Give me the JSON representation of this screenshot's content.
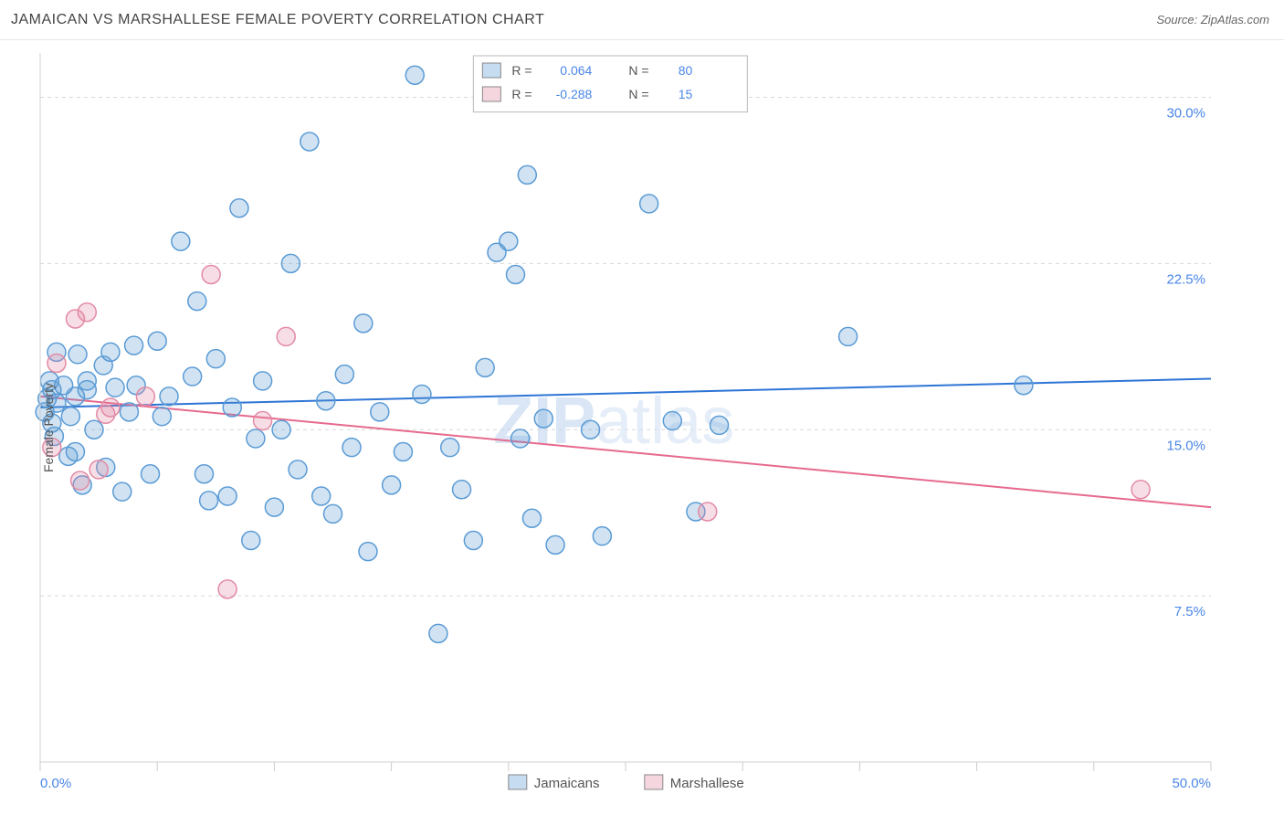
{
  "header": {
    "title": "JAMAICAN VS MARSHALLESE FEMALE POVERTY CORRELATION CHART",
    "source_label": "Source: ZipAtlas.com"
  },
  "chart": {
    "type": "scatter",
    "y_axis_label": "Female Poverty",
    "watermark": "ZIPatlas",
    "background_color": "#ffffff",
    "grid_color": "#d9d9d9",
    "axis_color": "#d0d0d0",
    "tick_color": "#cccccc",
    "label_color": "#4a86e8",
    "title_fontsize": 16,
    "label_fontsize": 14,
    "tick_fontsize": 15,
    "xlim": [
      0,
      50
    ],
    "ylim": [
      0,
      32
    ],
    "x_tick_positions": [
      0,
      5,
      10,
      15,
      20,
      25,
      30,
      35,
      40,
      45,
      50
    ],
    "x_tick_labels": {
      "0": "0.0%",
      "50": "50.0%"
    },
    "y_ticks": [
      {
        "value": 7.5,
        "label": "7.5%"
      },
      {
        "value": 15.0,
        "label": "15.0%"
      },
      {
        "value": 22.5,
        "label": "22.5%"
      },
      {
        "value": 30.0,
        "label": "30.0%"
      }
    ],
    "marker_radius": 10,
    "marker_stroke_width": 1.5,
    "marker_fill_opacity": 0.28,
    "line_width": 2,
    "series": [
      {
        "id": "jamaicans",
        "name": "Jamaicans",
        "color": "#5b9bd5",
        "line_color": "#2e75d6",
        "R": "0.064",
        "N": "80",
        "trend": {
          "x1": 0,
          "y1": 16.0,
          "x2": 50,
          "y2": 17.3
        },
        "points": [
          [
            0.2,
            15.8
          ],
          [
            0.3,
            16.4
          ],
          [
            0.4,
            17.2
          ],
          [
            0.5,
            15.3
          ],
          [
            0.5,
            16.8
          ],
          [
            0.6,
            14.7
          ],
          [
            0.7,
            16.2
          ],
          [
            0.7,
            18.5
          ],
          [
            1.0,
            17.0
          ],
          [
            1.2,
            13.8
          ],
          [
            1.3,
            15.6
          ],
          [
            1.5,
            16.5
          ],
          [
            1.6,
            18.4
          ],
          [
            1.8,
            12.5
          ],
          [
            2.0,
            16.8
          ],
          [
            2.0,
            17.2
          ],
          [
            2.3,
            15.0
          ],
          [
            2.7,
            17.9
          ],
          [
            2.8,
            13.3
          ],
          [
            3.0,
            18.5
          ],
          [
            3.2,
            16.9
          ],
          [
            3.5,
            12.2
          ],
          [
            4.0,
            18.8
          ],
          [
            4.1,
            17.0
          ],
          [
            4.7,
            13.0
          ],
          [
            5.0,
            19.0
          ],
          [
            5.2,
            15.6
          ],
          [
            5.5,
            16.5
          ],
          [
            6.0,
            23.5
          ],
          [
            6.5,
            17.4
          ],
          [
            6.7,
            20.8
          ],
          [
            7.0,
            13.0
          ],
          [
            7.2,
            11.8
          ],
          [
            7.5,
            18.2
          ],
          [
            8.0,
            12.0
          ],
          [
            8.2,
            16.0
          ],
          [
            8.5,
            25.0
          ],
          [
            9.0,
            10.0
          ],
          [
            9.2,
            14.6
          ],
          [
            9.5,
            17.2
          ],
          [
            10.0,
            11.5
          ],
          [
            10.3,
            15.0
          ],
          [
            10.7,
            22.5
          ],
          [
            11.0,
            13.2
          ],
          [
            11.5,
            28.0
          ],
          [
            12.0,
            12.0
          ],
          [
            12.2,
            16.3
          ],
          [
            12.5,
            11.2
          ],
          [
            13.0,
            17.5
          ],
          [
            13.3,
            14.2
          ],
          [
            13.8,
            19.8
          ],
          [
            14.0,
            9.5
          ],
          [
            14.5,
            15.8
          ],
          [
            15.0,
            12.5
          ],
          [
            15.5,
            14.0
          ],
          [
            16.0,
            31.0
          ],
          [
            16.3,
            16.6
          ],
          [
            17.0,
            5.8
          ],
          [
            17.5,
            14.2
          ],
          [
            18.0,
            12.3
          ],
          [
            18.5,
            10.0
          ],
          [
            19.0,
            17.8
          ],
          [
            19.5,
            23.0
          ],
          [
            20.0,
            23.5
          ],
          [
            20.3,
            22.0
          ],
          [
            20.5,
            14.6
          ],
          [
            20.8,
            26.5
          ],
          [
            21.0,
            11.0
          ],
          [
            21.5,
            15.5
          ],
          [
            22.0,
            9.8
          ],
          [
            23.5,
            15.0
          ],
          [
            24.0,
            10.2
          ],
          [
            26.0,
            25.2
          ],
          [
            27.0,
            15.4
          ],
          [
            28.0,
            11.3
          ],
          [
            29.0,
            15.2
          ],
          [
            34.5,
            19.2
          ],
          [
            42.0,
            17.0
          ],
          [
            1.5,
            14.0
          ],
          [
            3.8,
            15.8
          ]
        ]
      },
      {
        "id": "marshallese",
        "name": "Marshallese",
        "color": "#e38aa4",
        "line_color": "#e66a8e",
        "R": "-0.288",
        "N": "15",
        "trend": {
          "x1": 0,
          "y1": 16.5,
          "x2": 50,
          "y2": 11.5
        },
        "points": [
          [
            0.5,
            14.2
          ],
          [
            0.7,
            18.0
          ],
          [
            1.5,
            20.0
          ],
          [
            1.7,
            12.7
          ],
          [
            2.0,
            20.3
          ],
          [
            2.5,
            13.2
          ],
          [
            2.8,
            15.7
          ],
          [
            3.0,
            16.0
          ],
          [
            4.5,
            16.5
          ],
          [
            7.3,
            22.0
          ],
          [
            8.0,
            7.8
          ],
          [
            9.5,
            15.4
          ],
          [
            10.5,
            19.2
          ],
          [
            28.5,
            11.3
          ],
          [
            47.0,
            12.3
          ]
        ]
      }
    ],
    "legend_box": {
      "border_color": "#b9b9b9",
      "bg_color": "#ffffff",
      "swatch_border": "#888888",
      "r_label": "R =",
      "n_label": "N ="
    },
    "footer_legend": {
      "swatch_border": "#888888"
    }
  }
}
